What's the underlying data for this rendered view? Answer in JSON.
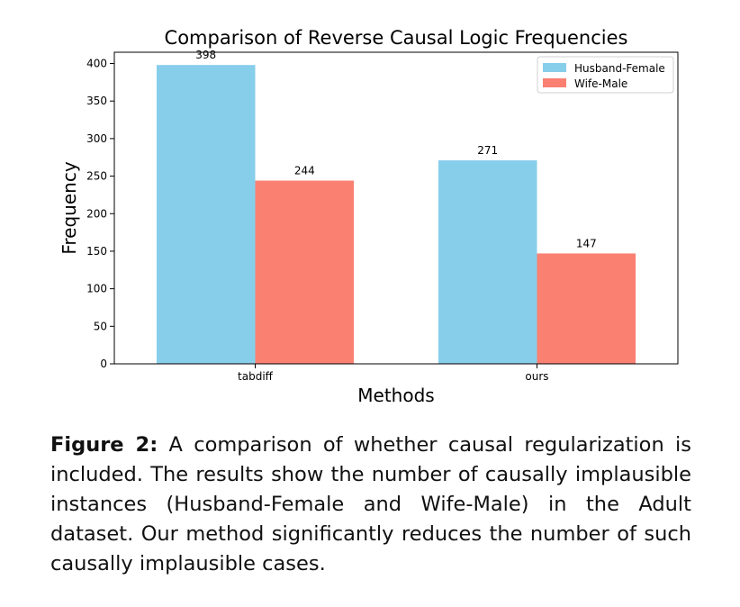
{
  "chart_data": {
    "type": "bar",
    "title": "Comparison of Reverse Causal Logic Frequencies",
    "xlabel": "Methods",
    "ylabel": "Frequency",
    "categories": [
      "tabdiff",
      "ours"
    ],
    "series": [
      {
        "name": "Husband-Female",
        "values": [
          398,
          271
        ],
        "color": "#87CEEB"
      },
      {
        "name": "Wife-Male",
        "values": [
          244,
          147
        ],
        "color": "#FA8072"
      }
    ],
    "ylim": [
      0,
      415
    ],
    "yticks": [
      0,
      50,
      100,
      150,
      200,
      250,
      300,
      350,
      400
    ],
    "legend_position": "upper right",
    "grid": false
  },
  "caption": {
    "label": "Figure 2:",
    "text": "A comparison of whether causal regularization is included. The results show the number of causally implausible instances (Husband-Female and Wife-Male) in the Adult dataset. Our method significantly reduces the number of such causally implausible cases."
  }
}
